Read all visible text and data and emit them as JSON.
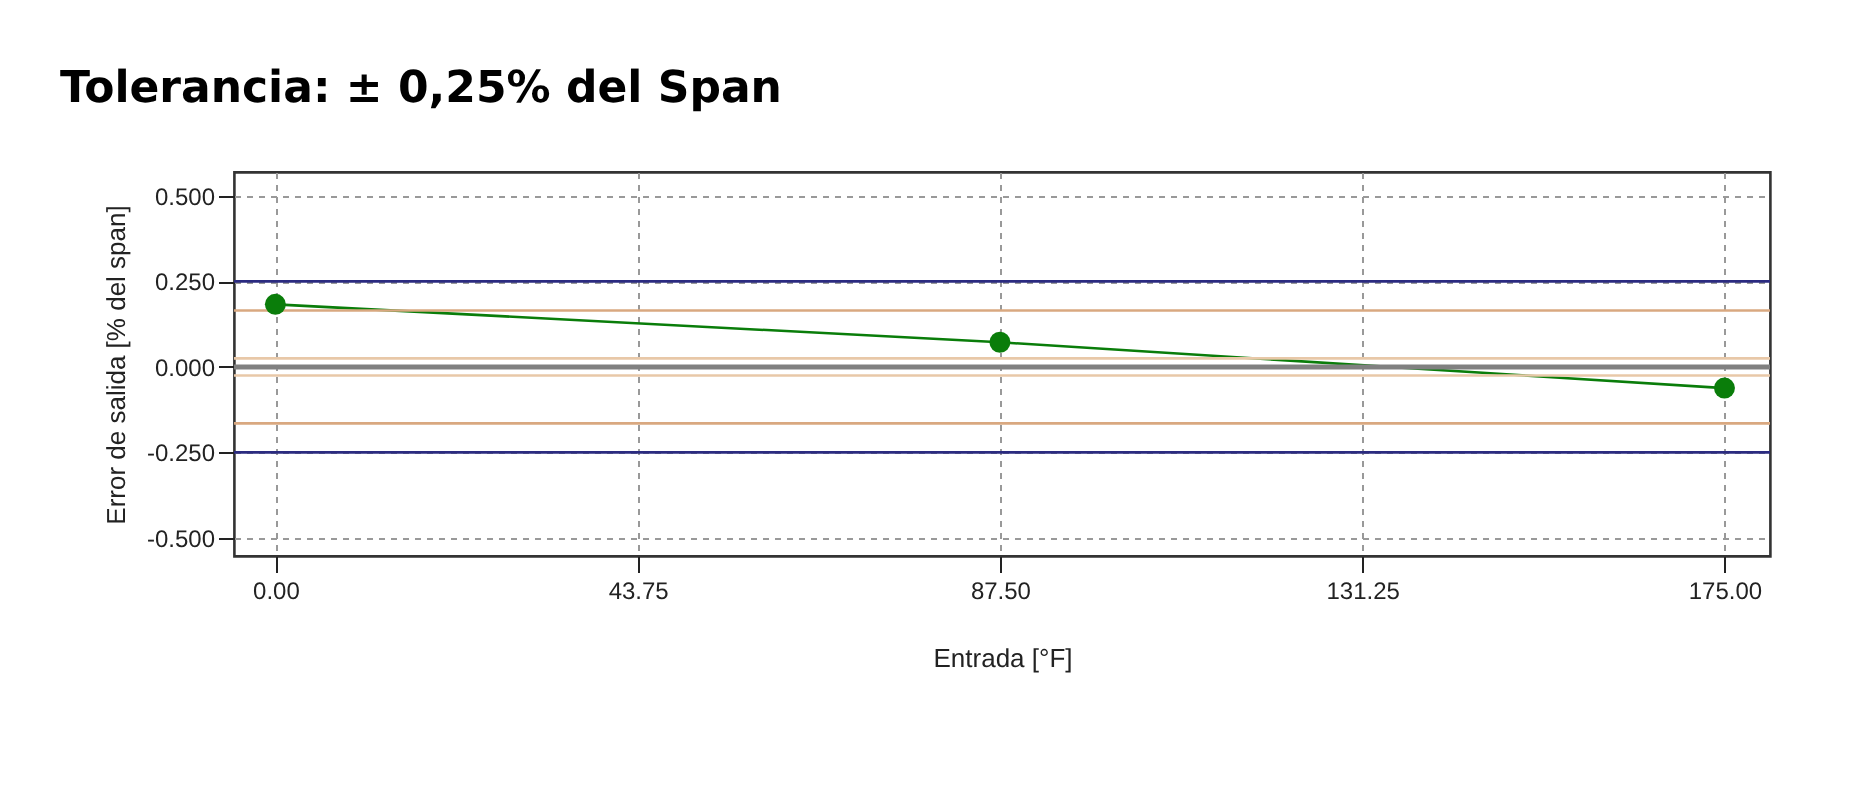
{
  "chart_data": {
    "type": "line",
    "title": "Tolerancia: ± 0,25% del Span",
    "xlabel": "Entrada [°F]",
    "ylabel": "Error de salida [% del span]",
    "x": [
      0,
      87.5,
      175
    ],
    "series": [
      {
        "color": "#0a7d0a",
        "values": [
          0.183,
          0.072,
          -0.062
        ]
      }
    ],
    "marker": "circle",
    "line_style": "solid",
    "grid": true,
    "xlim": [
      -5,
      180.5
    ],
    "ylim": [
      -0.553,
      0.57
    ],
    "xticks": [
      {
        "value": 0,
        "label": "0.00"
      },
      {
        "value": 43.75,
        "label": "43.75"
      },
      {
        "value": 87.5,
        "label": "87.50"
      },
      {
        "value": 131.25,
        "label": "131.25"
      },
      {
        "value": 175,
        "label": "175.00"
      }
    ],
    "yticks": [
      {
        "value": -0.5,
        "label": "-0.500"
      },
      {
        "value": -0.25,
        "label": "-0.250"
      },
      {
        "value": 0,
        "label": "0.000"
      },
      {
        "value": 0.25,
        "label": "0.250"
      },
      {
        "value": 0.5,
        "label": "0.500"
      }
    ],
    "ref_lines": [
      {
        "axis": "y",
        "value": 0.25,
        "color": "#2b2b80"
      },
      {
        "axis": "y",
        "value": -0.25,
        "color": "#2b2b80"
      },
      {
        "axis": "y",
        "value": 0.165,
        "color": "#d9a880"
      },
      {
        "axis": "y",
        "value": -0.165,
        "color": "#d9a880"
      },
      {
        "axis": "y",
        "value": 0.025,
        "color": "#e8c8a8"
      },
      {
        "axis": "y",
        "value": -0.025,
        "color": "#e8c8a8"
      },
      {
        "axis": "y",
        "value": 0,
        "color": "#808080"
      }
    ]
  }
}
